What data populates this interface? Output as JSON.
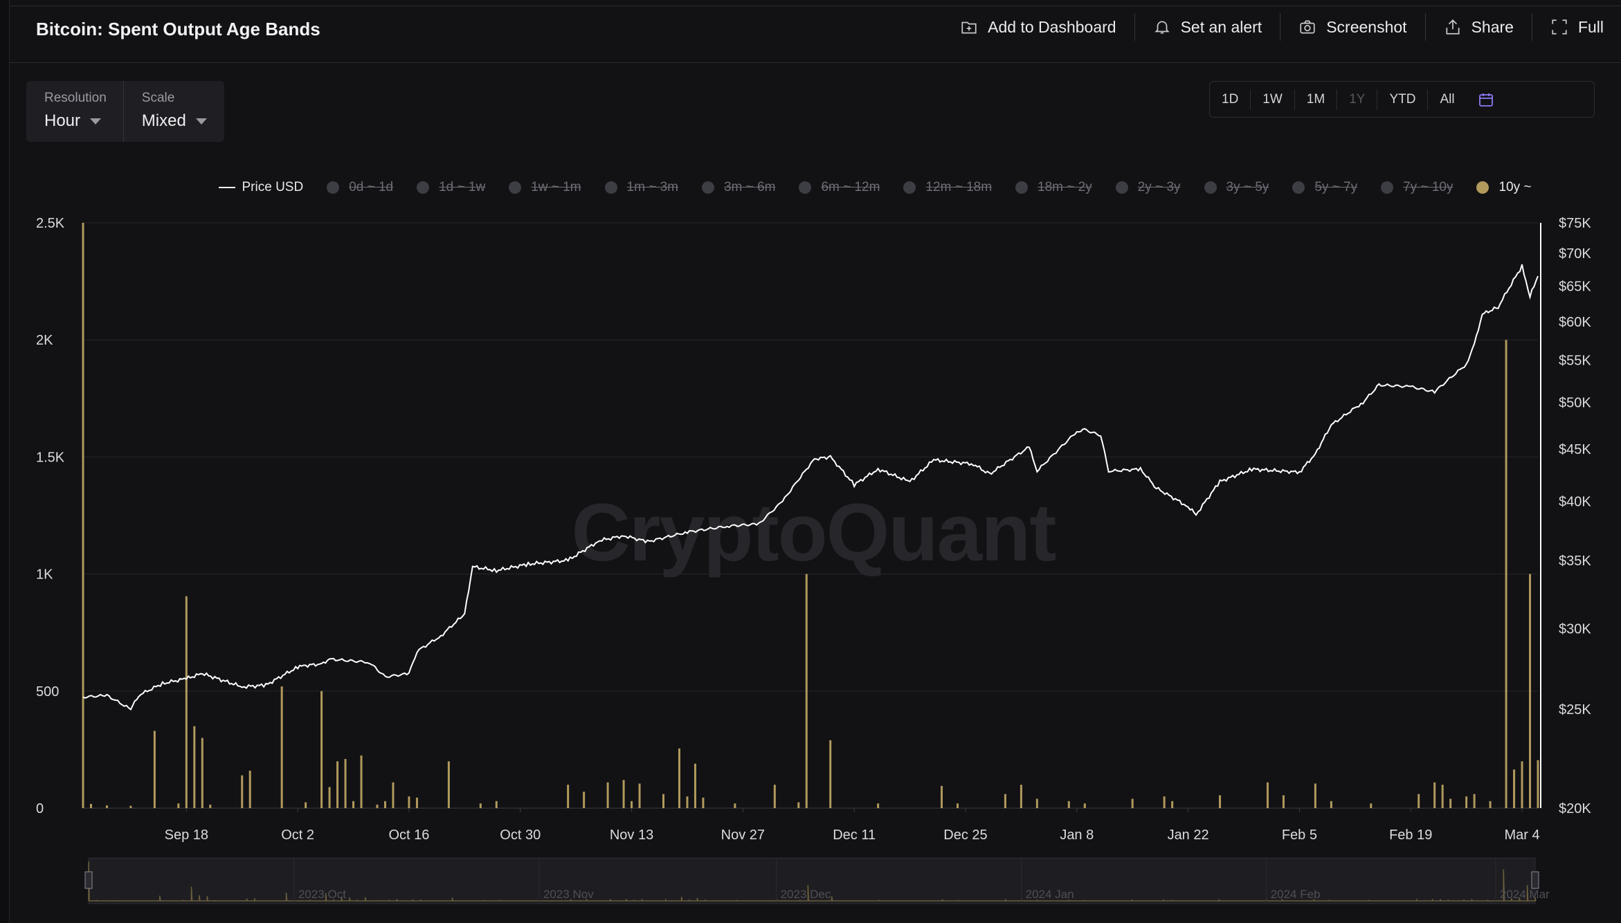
{
  "header": {
    "title": "Bitcoin: Spent Output Age Bands"
  },
  "toolbar": [
    {
      "label": "Add to Dashboard",
      "icon": "dashboard-add-icon"
    },
    {
      "label": "Set an alert",
      "icon": "bell-icon"
    },
    {
      "label": "Screenshot",
      "icon": "camera-icon"
    },
    {
      "label": "Share",
      "icon": "share-icon"
    },
    {
      "label": "Full",
      "icon": "fullscreen-icon"
    }
  ],
  "controls": {
    "resolution": {
      "label": "Resolution",
      "value": "Hour"
    },
    "scale": {
      "label": "Scale",
      "value": "Mixed"
    }
  },
  "ranges": [
    "1D",
    "1W",
    "1M",
    "1Y",
    "YTD",
    "All"
  ],
  "legend": {
    "price": "Price USD",
    "bands": [
      "0d ~ 1d",
      "1d ~ 1w",
      "1w ~ 1m",
      "1m ~ 3m",
      "3m ~ 6m",
      "6m ~ 12m",
      "12m ~ 18m",
      "18m ~ 2y",
      "2y ~ 3y",
      "3y ~ 5y",
      "5y ~ 7y",
      "7y ~ 10y",
      "10y ~"
    ],
    "active_band": "10y ~"
  },
  "watermark": "CryptoQuant",
  "colors": {
    "band_10y": "#b19a5c",
    "price": "#ffffff",
    "background": "#121215"
  },
  "chart_data": {
    "type": "bar",
    "title": "Bitcoin: Spent Output Age Bands",
    "x_range": [
      "2023-09-05",
      "2024-03-06"
    ],
    "x_ticks": [
      "Sep 18",
      "Oct 2",
      "Oct 16",
      "Oct 30",
      "Nov 13",
      "Nov 27",
      "Dec 11",
      "Dec 25",
      "Jan 8",
      "Jan 22",
      "Feb 5",
      "Feb 19",
      "Mar 4"
    ],
    "y_left": {
      "range": [
        0,
        2500
      ],
      "ticks": [
        "0",
        "500",
        "1K",
        "1.5K",
        "2K",
        "2.5K"
      ]
    },
    "y_right": {
      "scale": "log",
      "range": [
        20000,
        75000
      ],
      "ticks": [
        "$20K",
        "$25K",
        "$30K",
        "$35K",
        "$40K",
        "$45K",
        "$50K",
        "$55K",
        "$60K",
        "$65K",
        "$70K",
        "$75K"
      ]
    },
    "grid": true,
    "legend_position": "top",
    "series": [
      {
        "name": "10y ~",
        "type": "bar",
        "axis": "left",
        "points": [
          [
            "2023-09-05",
            2500
          ],
          [
            "2023-09-06",
            18
          ],
          [
            "2023-09-08",
            12
          ],
          [
            "2023-09-11",
            10
          ],
          [
            "2023-09-14",
            330
          ],
          [
            "2023-09-17",
            20
          ],
          [
            "2023-09-18",
            905
          ],
          [
            "2023-09-19",
            350
          ],
          [
            "2023-09-20",
            300
          ],
          [
            "2023-09-21",
            15
          ],
          [
            "2023-09-25",
            140
          ],
          [
            "2023-09-26",
            160
          ],
          [
            "2023-09-30",
            520
          ],
          [
            "2023-10-03",
            25
          ],
          [
            "2023-10-05",
            500
          ],
          [
            "2023-10-06",
            90
          ],
          [
            "2023-10-07",
            200
          ],
          [
            "2023-10-08",
            210
          ],
          [
            "2023-10-09",
            30
          ],
          [
            "2023-10-10",
            225
          ],
          [
            "2023-10-12",
            15
          ],
          [
            "2023-10-13",
            30
          ],
          [
            "2023-10-14",
            110
          ],
          [
            "2023-10-16",
            50
          ],
          [
            "2023-10-17",
            45
          ],
          [
            "2023-10-21",
            200
          ],
          [
            "2023-10-25",
            20
          ],
          [
            "2023-10-27",
            30
          ],
          [
            "2023-11-05",
            100
          ],
          [
            "2023-11-07",
            70
          ],
          [
            "2023-11-10",
            110
          ],
          [
            "2023-11-12",
            120
          ],
          [
            "2023-11-13",
            30
          ],
          [
            "2023-11-14",
            105
          ],
          [
            "2023-11-17",
            60
          ],
          [
            "2023-11-19",
            255
          ],
          [
            "2023-11-20",
            50
          ],
          [
            "2023-11-21",
            190
          ],
          [
            "2023-11-22",
            45
          ],
          [
            "2023-11-26",
            20
          ],
          [
            "2023-12-01",
            100
          ],
          [
            "2023-12-04",
            25
          ],
          [
            "2023-12-05",
            1000
          ],
          [
            "2023-12-08",
            290
          ],
          [
            "2023-12-14",
            20
          ],
          [
            "2023-12-22",
            95
          ],
          [
            "2023-12-24",
            20
          ],
          [
            "2023-12-30",
            60
          ],
          [
            "2024-01-01",
            100
          ],
          [
            "2024-01-03",
            40
          ],
          [
            "2024-01-07",
            30
          ],
          [
            "2024-01-09",
            20
          ],
          [
            "2024-01-15",
            40
          ],
          [
            "2024-01-19",
            50
          ],
          [
            "2024-01-20",
            30
          ],
          [
            "2024-01-26",
            55
          ],
          [
            "2024-02-01",
            110
          ],
          [
            "2024-02-03",
            55
          ],
          [
            "2024-02-07",
            105
          ],
          [
            "2024-02-09",
            30
          ],
          [
            "2024-02-14",
            20
          ],
          [
            "2024-02-20",
            60
          ],
          [
            "2024-02-22",
            110
          ],
          [
            "2024-02-23",
            100
          ],
          [
            "2024-02-24",
            40
          ],
          [
            "2024-02-26",
            50
          ],
          [
            "2024-02-27",
            60
          ],
          [
            "2024-02-29",
            30
          ],
          [
            "2024-03-02",
            2000
          ],
          [
            "2024-03-03",
            165
          ],
          [
            "2024-03-04",
            200
          ],
          [
            "2024-03-05",
            1000
          ],
          [
            "2024-03-06",
            205
          ]
        ]
      },
      {
        "name": "Price USD",
        "type": "line",
        "axis": "right",
        "points": [
          [
            "2023-09-05",
            25700
          ],
          [
            "2023-09-08",
            25800
          ],
          [
            "2023-09-11",
            25000
          ],
          [
            "2023-09-12",
            25800
          ],
          [
            "2023-09-15",
            26500
          ],
          [
            "2023-09-18",
            26800
          ],
          [
            "2023-09-20",
            27100
          ],
          [
            "2023-09-25",
            26300
          ],
          [
            "2023-09-28",
            26400
          ],
          [
            "2023-10-02",
            27500
          ],
          [
            "2023-10-03",
            27600
          ],
          [
            "2023-10-05",
            27700
          ],
          [
            "2023-10-06",
            28000
          ],
          [
            "2023-10-11",
            27800
          ],
          [
            "2023-10-13",
            26900
          ],
          [
            "2023-10-16",
            27100
          ],
          [
            "2023-10-17",
            28500
          ],
          [
            "2023-10-20",
            29500
          ],
          [
            "2023-10-23",
            31000
          ],
          [
            "2023-10-24",
            34500
          ],
          [
            "2023-10-27",
            34200
          ],
          [
            "2023-10-31",
            34700
          ],
          [
            "2023-11-05",
            35000
          ],
          [
            "2023-11-09",
            36600
          ],
          [
            "2023-11-12",
            37000
          ],
          [
            "2023-11-15",
            36500
          ],
          [
            "2023-11-20",
            37300
          ],
          [
            "2023-11-25",
            37800
          ],
          [
            "2023-11-29",
            38000
          ],
          [
            "2023-12-02",
            40000
          ],
          [
            "2023-12-04",
            42000
          ],
          [
            "2023-12-06",
            44000
          ],
          [
            "2023-12-08",
            44200
          ],
          [
            "2023-12-11",
            41500
          ],
          [
            "2023-12-14",
            43000
          ],
          [
            "2023-12-18",
            41800
          ],
          [
            "2023-12-21",
            43900
          ],
          [
            "2023-12-26",
            43500
          ],
          [
            "2023-12-28",
            42500
          ],
          [
            "2024-01-02",
            45200
          ],
          [
            "2024-01-03",
            42800
          ],
          [
            "2024-01-08",
            46800
          ],
          [
            "2024-01-09",
            47000
          ],
          [
            "2024-01-11",
            46400
          ],
          [
            "2024-01-12",
            42800
          ],
          [
            "2024-01-16",
            43000
          ],
          [
            "2024-01-18",
            41200
          ],
          [
            "2024-01-22",
            39500
          ],
          [
            "2024-01-23",
            38800
          ],
          [
            "2024-01-26",
            41800
          ],
          [
            "2024-01-30",
            43000
          ],
          [
            "2024-02-05",
            42700
          ],
          [
            "2024-02-07",
            44500
          ],
          [
            "2024-02-09",
            47500
          ],
          [
            "2024-02-13",
            50000
          ],
          [
            "2024-02-15",
            52000
          ],
          [
            "2024-02-19",
            51800
          ],
          [
            "2024-02-22",
            51200
          ],
          [
            "2024-02-26",
            54500
          ],
          [
            "2024-02-27",
            57000
          ],
          [
            "2024-02-28",
            61000
          ],
          [
            "2024-03-01",
            62000
          ],
          [
            "2024-03-04",
            68000
          ],
          [
            "2024-03-05",
            63500
          ],
          [
            "2024-03-06",
            66500
          ]
        ]
      }
    ]
  },
  "navigator": {
    "labels": [
      "2023 Oct",
      "2023 Nov",
      "2023 Dec",
      "2024 Jan",
      "2024 Feb",
      "2024 Mar"
    ]
  }
}
